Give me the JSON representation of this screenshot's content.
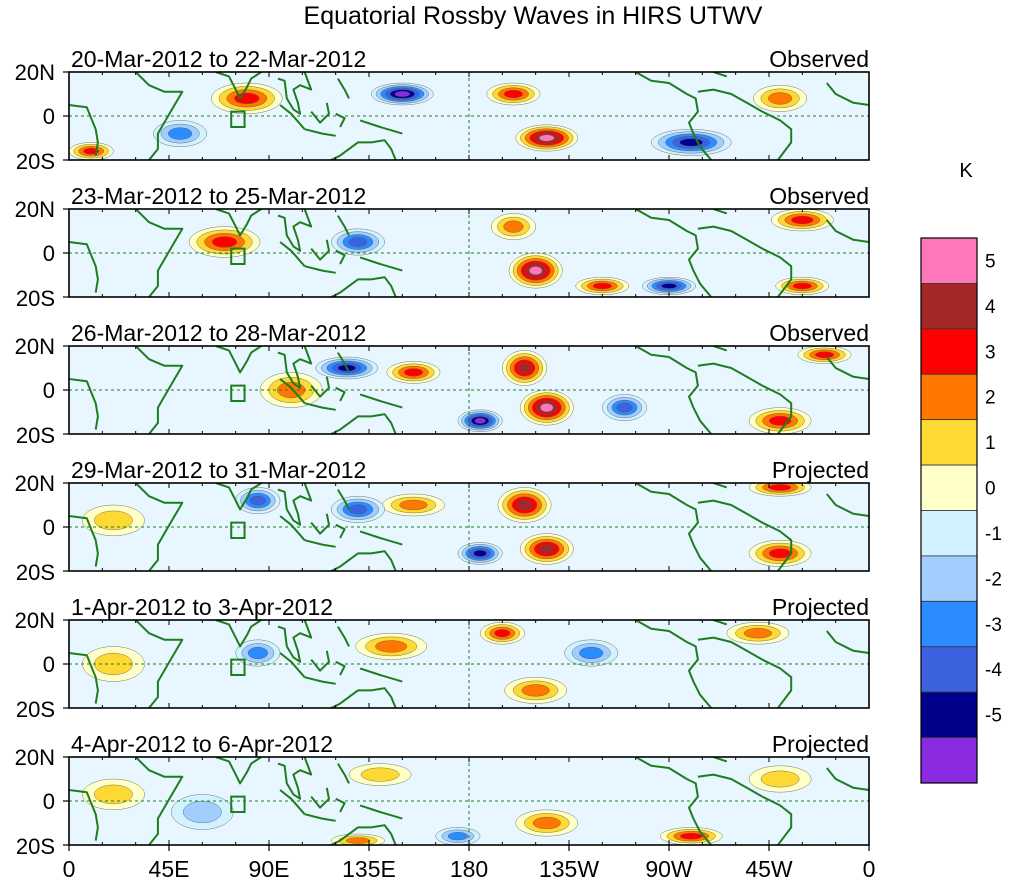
{
  "chart_data": {
    "type": "heatmap",
    "title": "Equatorial Rossby Waves in HIRS UTWV",
    "x_ticks": [
      "0",
      "45E",
      "90E",
      "135E",
      "180",
      "135W",
      "90W",
      "45W",
      "0"
    ],
    "x_tick_values": [
      0,
      45,
      90,
      135,
      180,
      225,
      270,
      315,
      360
    ],
    "y_ticks": [
      "20N",
      "0",
      "20S"
    ],
    "y_tick_values": [
      20,
      0,
      -20
    ],
    "xlim": [
      0,
      360
    ],
    "ylim": [
      -20,
      20
    ],
    "colorbar": {
      "unit": "K",
      "labels": [
        "5",
        "4",
        "3",
        "2",
        "1",
        "0",
        "-1",
        "-2",
        "-3",
        "-4",
        "-5"
      ],
      "colors": [
        "#ff77bb",
        "#a32929",
        "#ff0000",
        "#ff7700",
        "#ffd933",
        "#ffffc8",
        "#d2f2ff",
        "#a2cdff",
        "#2a8cff",
        "#3d62e0",
        "#00008b",
        "#8a2be2"
      ]
    },
    "panels": [
      {
        "period": "20-Mar-2012 to 22-Mar-2012",
        "status": "Observed",
        "features": [
          {
            "lon": 80,
            "lat": 8,
            "rx": 16,
            "ry": 7,
            "value": 3
          },
          {
            "lon": 150,
            "lat": 10,
            "rx": 14,
            "ry": 5,
            "value": -5
          },
          {
            "lon": 200,
            "lat": 10,
            "rx": 12,
            "ry": 5,
            "value": 3
          },
          {
            "lon": 215,
            "lat": -10,
            "rx": 14,
            "ry": 6,
            "value": 5
          },
          {
            "lon": 50,
            "lat": -8,
            "rx": 12,
            "ry": 6,
            "value": -2
          },
          {
            "lon": 280,
            "lat": -12,
            "rx": 18,
            "ry": 6,
            "value": -4
          },
          {
            "lon": 320,
            "lat": 8,
            "rx": 12,
            "ry": 6,
            "value": 2
          },
          {
            "lon": 10,
            "lat": -16,
            "rx": 10,
            "ry": 4,
            "value": 3
          }
        ]
      },
      {
        "period": "23-Mar-2012 to 25-Mar-2012",
        "status": "Observed",
        "features": [
          {
            "lon": 70,
            "lat": 5,
            "rx": 16,
            "ry": 7,
            "value": 3
          },
          {
            "lon": 130,
            "lat": 5,
            "rx": 12,
            "ry": 6,
            "value": -3
          },
          {
            "lon": 210,
            "lat": -8,
            "rx": 12,
            "ry": 8,
            "value": 5
          },
          {
            "lon": 200,
            "lat": 12,
            "rx": 10,
            "ry": 6,
            "value": 2
          },
          {
            "lon": 240,
            "lat": -15,
            "rx": 12,
            "ry": 4,
            "value": 3
          },
          {
            "lon": 270,
            "lat": -15,
            "rx": 12,
            "ry": 4,
            "value": -4
          },
          {
            "lon": 330,
            "lat": 15,
            "rx": 14,
            "ry": 5,
            "value": 3
          },
          {
            "lon": 330,
            "lat": -15,
            "rx": 12,
            "ry": 4,
            "value": 3
          }
        ]
      },
      {
        "period": "26-Mar-2012 to 28-Mar-2012",
        "status": "Observed",
        "features": [
          {
            "lon": 100,
            "lat": 0,
            "rx": 14,
            "ry": 8,
            "value": 2
          },
          {
            "lon": 125,
            "lat": 10,
            "rx": 14,
            "ry": 5,
            "value": -4
          },
          {
            "lon": 155,
            "lat": 8,
            "rx": 12,
            "ry": 5,
            "value": 3
          },
          {
            "lon": 205,
            "lat": 10,
            "rx": 10,
            "ry": 8,
            "value": 4
          },
          {
            "lon": 215,
            "lat": -8,
            "rx": 12,
            "ry": 8,
            "value": 5
          },
          {
            "lon": 185,
            "lat": -14,
            "rx": 10,
            "ry": 5,
            "value": -5
          },
          {
            "lon": 250,
            "lat": -8,
            "rx": 10,
            "ry": 6,
            "value": -3
          },
          {
            "lon": 320,
            "lat": -14,
            "rx": 14,
            "ry": 6,
            "value": 3
          },
          {
            "lon": 340,
            "lat": 16,
            "rx": 12,
            "ry": 4,
            "value": 3
          }
        ]
      },
      {
        "period": "29-Mar-2012 to 31-Mar-2012",
        "status": "Projected",
        "features": [
          {
            "lon": 205,
            "lat": 10,
            "rx": 12,
            "ry": 8,
            "value": 4
          },
          {
            "lon": 215,
            "lat": -10,
            "rx": 12,
            "ry": 7,
            "value": 4
          },
          {
            "lon": 155,
            "lat": 10,
            "rx": 14,
            "ry": 5,
            "value": 2
          },
          {
            "lon": 130,
            "lat": 8,
            "rx": 12,
            "ry": 6,
            "value": -3
          },
          {
            "lon": 185,
            "lat": -12,
            "rx": 10,
            "ry": 5,
            "value": -4
          },
          {
            "lon": 320,
            "lat": 18,
            "rx": 14,
            "ry": 4,
            "value": 3
          },
          {
            "lon": 320,
            "lat": -12,
            "rx": 14,
            "ry": 6,
            "value": 3
          },
          {
            "lon": 20,
            "lat": 3,
            "rx": 14,
            "ry": 7,
            "value": 1
          },
          {
            "lon": 85,
            "lat": 12,
            "rx": 10,
            "ry": 6,
            "value": -3
          }
        ]
      },
      {
        "period": "1-Apr-2012 to 3-Apr-2012",
        "status": "Projected",
        "features": [
          {
            "lon": 145,
            "lat": 8,
            "rx": 16,
            "ry": 6,
            "value": 2
          },
          {
            "lon": 195,
            "lat": 14,
            "rx": 10,
            "ry": 5,
            "value": 3
          },
          {
            "lon": 210,
            "lat": -12,
            "rx": 14,
            "ry": 6,
            "value": 2
          },
          {
            "lon": 235,
            "lat": 5,
            "rx": 12,
            "ry": 6,
            "value": -2
          },
          {
            "lon": 310,
            "lat": 14,
            "rx": 14,
            "ry": 5,
            "value": 2
          },
          {
            "lon": 85,
            "lat": 5,
            "rx": 10,
            "ry": 6,
            "value": -2
          },
          {
            "lon": 20,
            "lat": 0,
            "rx": 14,
            "ry": 8,
            "value": 1
          }
        ]
      },
      {
        "period": "4-Apr-2012 to 6-Apr-2012",
        "status": "Projected",
        "features": [
          {
            "lon": 215,
            "lat": -10,
            "rx": 14,
            "ry": 6,
            "value": 2
          },
          {
            "lon": 175,
            "lat": -16,
            "rx": 10,
            "ry": 4,
            "value": -2
          },
          {
            "lon": 140,
            "lat": 12,
            "rx": 14,
            "ry": 5,
            "value": 1
          },
          {
            "lon": 280,
            "lat": -16,
            "rx": 14,
            "ry": 4,
            "value": 3
          },
          {
            "lon": 130,
            "lat": -18,
            "rx": 12,
            "ry": 3,
            "value": 2
          },
          {
            "lon": 60,
            "lat": -5,
            "rx": 14,
            "ry": 8,
            "value": -1
          },
          {
            "lon": 320,
            "lat": 10,
            "rx": 14,
            "ry": 6,
            "value": 1
          },
          {
            "lon": 20,
            "lat": 3,
            "rx": 14,
            "ry": 7,
            "value": 1
          }
        ]
      }
    ]
  }
}
